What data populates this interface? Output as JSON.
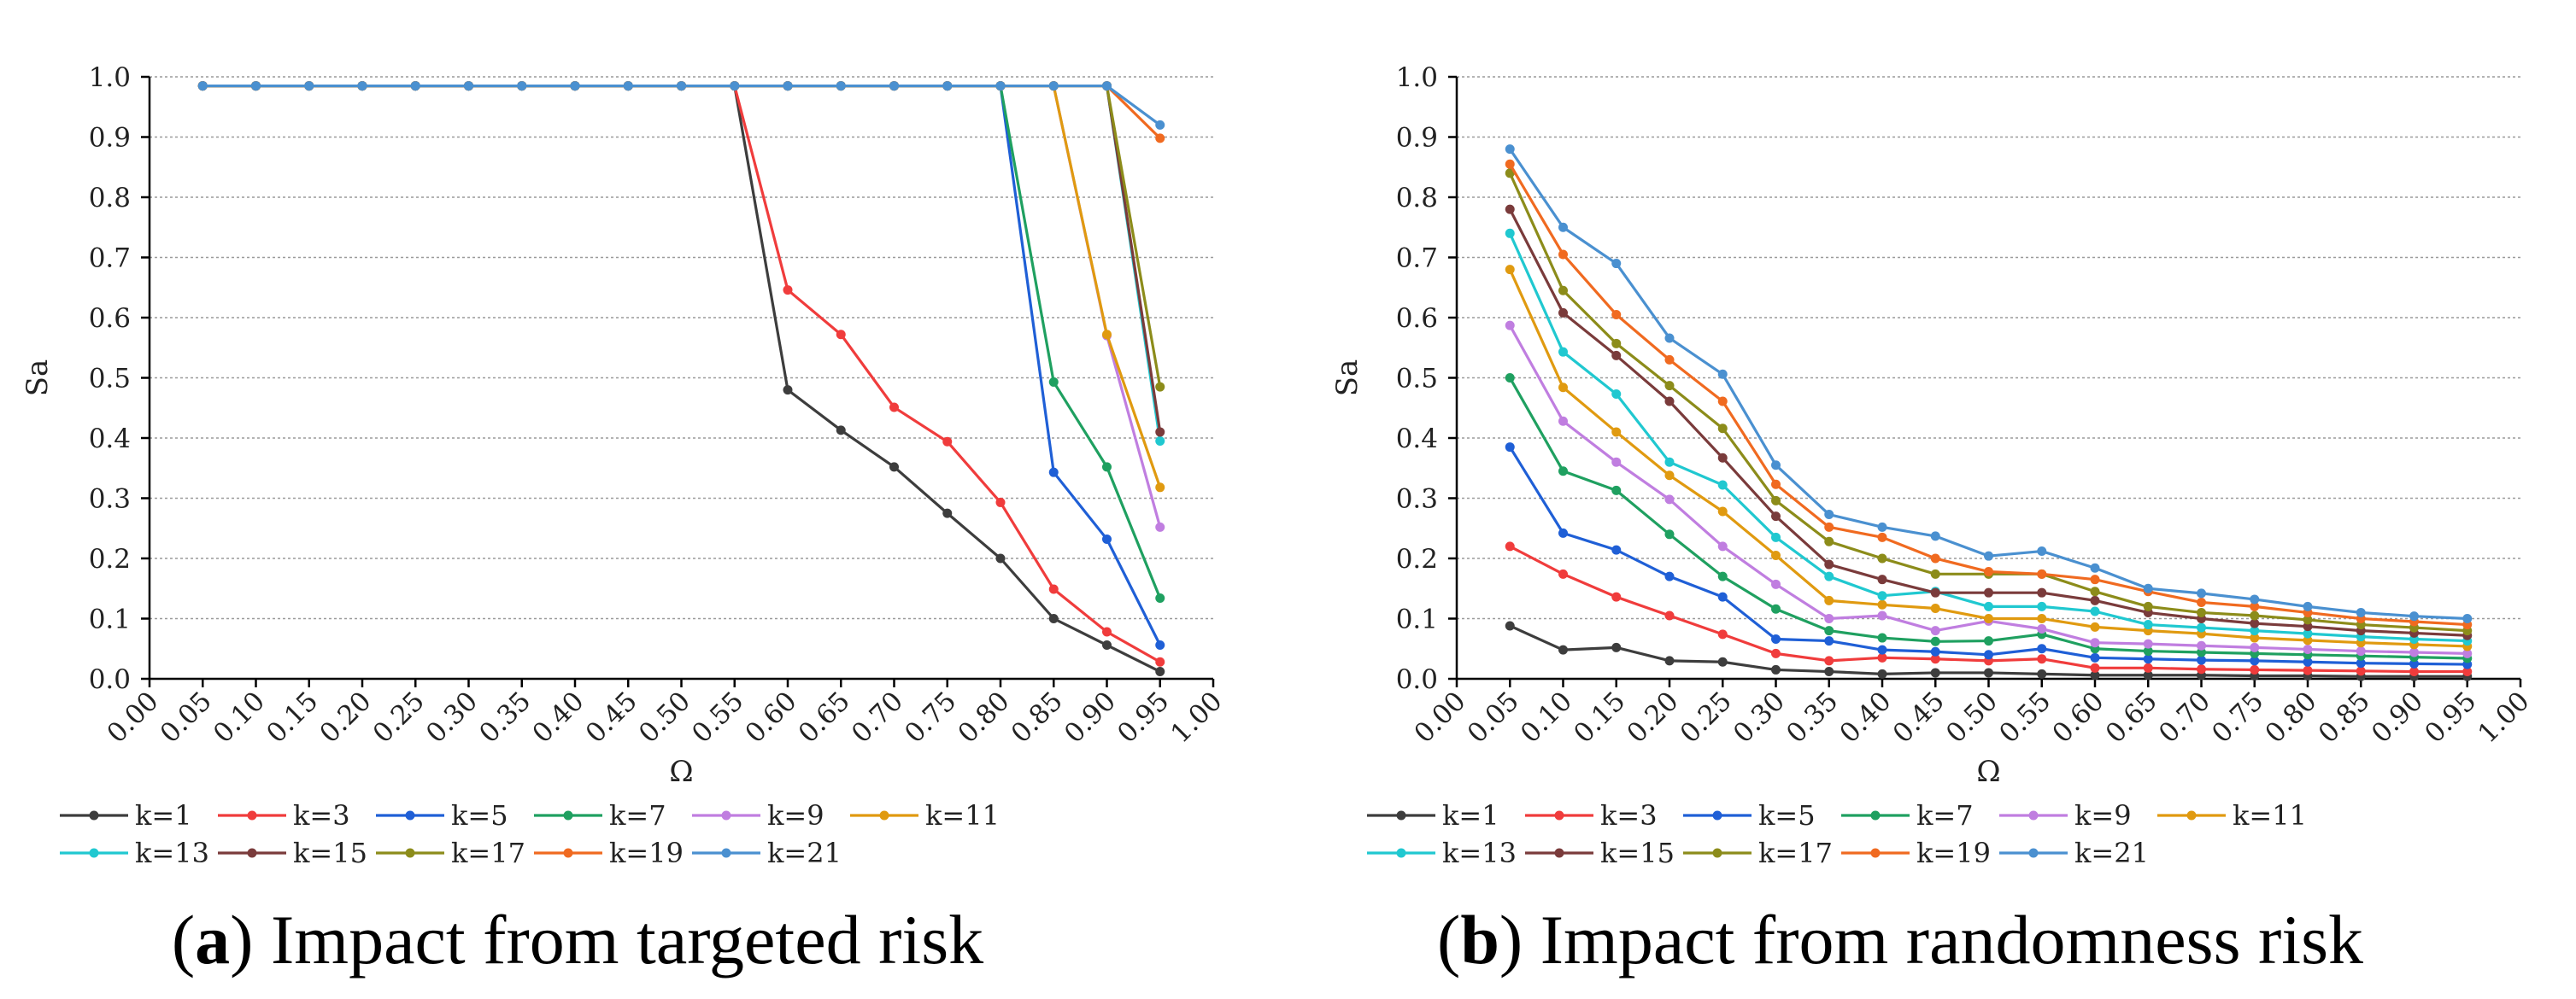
{
  "chart_data": [
    {
      "type": "line",
      "caption_letter": "a",
      "caption_text": ") Impact from targeted risk",
      "caption_open": "(",
      "xlabel": "Ω",
      "ylabel": "Sa",
      "xlim": [
        0.0,
        1.0
      ],
      "ylim": [
        0.0,
        1.0
      ],
      "grid": true,
      "legend_position": "bottom",
      "x": [
        0.05,
        0.1,
        0.15,
        0.2,
        0.25,
        0.3,
        0.35,
        0.4,
        0.45,
        0.5,
        0.55,
        0.6,
        0.65,
        0.7,
        0.75,
        0.8,
        0.85,
        0.9,
        0.95
      ],
      "xticks": [
        "0.00",
        "0.05",
        "0.10",
        "0.15",
        "0.20",
        "0.25",
        "0.30",
        "0.35",
        "0.40",
        "0.45",
        "0.50",
        "0.55",
        "0.60",
        "0.65",
        "0.70",
        "0.75",
        "0.80",
        "0.85",
        "0.90",
        "0.95",
        "1.00"
      ],
      "yticks": [
        "0.0",
        "0.1",
        "0.2",
        "0.3",
        "0.4",
        "0.5",
        "0.6",
        "0.7",
        "0.8",
        "0.9",
        "1.0"
      ],
      "series": [
        {
          "name": "k=1",
          "color": "#3d3d3d",
          "values": [
            0.985,
            0.985,
            0.985,
            0.985,
            0.985,
            0.985,
            0.985,
            0.985,
            0.985,
            0.985,
            0.985,
            0.48,
            0.413,
            0.352,
            0.275,
            0.2,
            0.1,
            0.056,
            0.012
          ]
        },
        {
          "name": "k=3",
          "color": "#f03c3c",
          "values": [
            0.985,
            0.985,
            0.985,
            0.985,
            0.985,
            0.985,
            0.985,
            0.985,
            0.985,
            0.985,
            0.985,
            0.646,
            0.572,
            0.451,
            0.394,
            0.293,
            0.149,
            0.078,
            0.028
          ]
        },
        {
          "name": "k=5",
          "color": "#1f5fd6",
          "values": [
            0.985,
            0.985,
            0.985,
            0.985,
            0.985,
            0.985,
            0.985,
            0.985,
            0.985,
            0.985,
            0.985,
            0.985,
            0.985,
            0.985,
            0.985,
            0.985,
            0.343,
            0.232,
            0.056
          ]
        },
        {
          "name": "k=7",
          "color": "#1fa060",
          "values": [
            0.985,
            0.985,
            0.985,
            0.985,
            0.985,
            0.985,
            0.985,
            0.985,
            0.985,
            0.985,
            0.985,
            0.985,
            0.985,
            0.985,
            0.985,
            0.985,
            0.493,
            0.352,
            0.134
          ]
        },
        {
          "name": "k=9",
          "color": "#c07ee0",
          "values": [
            0.985,
            0.985,
            0.985,
            0.985,
            0.985,
            0.985,
            0.985,
            0.985,
            0.985,
            0.985,
            0.985,
            0.985,
            0.985,
            0.985,
            0.985,
            0.985,
            0.985,
            0.57,
            0.252
          ]
        },
        {
          "name": "k=11",
          "color": "#e09a10",
          "values": [
            0.985,
            0.985,
            0.985,
            0.985,
            0.985,
            0.985,
            0.985,
            0.985,
            0.985,
            0.985,
            0.985,
            0.985,
            0.985,
            0.985,
            0.985,
            0.985,
            0.985,
            0.572,
            0.318
          ]
        },
        {
          "name": "k=13",
          "color": "#20c8d0",
          "values": [
            0.985,
            0.985,
            0.985,
            0.985,
            0.985,
            0.985,
            0.985,
            0.985,
            0.985,
            0.985,
            0.985,
            0.985,
            0.985,
            0.985,
            0.985,
            0.985,
            0.985,
            0.985,
            0.395
          ]
        },
        {
          "name": "k=15",
          "color": "#7a3b3b",
          "values": [
            0.985,
            0.985,
            0.985,
            0.985,
            0.985,
            0.985,
            0.985,
            0.985,
            0.985,
            0.985,
            0.985,
            0.985,
            0.985,
            0.985,
            0.985,
            0.985,
            0.985,
            0.985,
            0.41
          ]
        },
        {
          "name": "k=17",
          "color": "#8c8c1a",
          "values": [
            0.985,
            0.985,
            0.985,
            0.985,
            0.985,
            0.985,
            0.985,
            0.985,
            0.985,
            0.985,
            0.985,
            0.985,
            0.985,
            0.985,
            0.985,
            0.985,
            0.985,
            0.985,
            0.485
          ]
        },
        {
          "name": "k=19",
          "color": "#f06a20",
          "values": [
            0.985,
            0.985,
            0.985,
            0.985,
            0.985,
            0.985,
            0.985,
            0.985,
            0.985,
            0.985,
            0.985,
            0.985,
            0.985,
            0.985,
            0.985,
            0.985,
            0.985,
            0.985,
            0.898
          ]
        },
        {
          "name": "k=21",
          "color": "#4a90d0",
          "values": [
            0.985,
            0.985,
            0.985,
            0.985,
            0.985,
            0.985,
            0.985,
            0.985,
            0.985,
            0.985,
            0.985,
            0.985,
            0.985,
            0.985,
            0.985,
            0.985,
            0.985,
            0.985,
            0.92
          ]
        }
      ]
    },
    {
      "type": "line",
      "caption_letter": "b",
      "caption_text": ") Impact from randomness risk",
      "caption_open": "(",
      "xlabel": "Ω",
      "ylabel": "Sa",
      "xlim": [
        0.0,
        1.0
      ],
      "ylim": [
        0.0,
        1.0
      ],
      "grid": true,
      "legend_position": "bottom",
      "x": [
        0.05,
        0.1,
        0.15,
        0.2,
        0.25,
        0.3,
        0.35,
        0.4,
        0.45,
        0.5,
        0.55,
        0.6,
        0.65,
        0.7,
        0.75,
        0.8,
        0.85,
        0.9,
        0.95
      ],
      "xticks": [
        "0.00",
        "0.05",
        "0.10",
        "0.15",
        "0.20",
        "0.25",
        "0.30",
        "0.35",
        "0.40",
        "0.45",
        "0.50",
        "0.55",
        "0.60",
        "0.65",
        "0.70",
        "0.75",
        "0.80",
        "0.85",
        "0.90",
        "0.95",
        "1.00"
      ],
      "yticks": [
        "0.0",
        "0.1",
        "0.2",
        "0.3",
        "0.4",
        "0.5",
        "0.6",
        "0.7",
        "0.8",
        "0.9",
        "1.0"
      ],
      "series": [
        {
          "name": "k=1",
          "color": "#3d3d3d",
          "values": [
            0.088,
            0.048,
            0.052,
            0.03,
            0.028,
            0.015,
            0.012,
            0.008,
            0.01,
            0.01,
            0.008,
            0.006,
            0.006,
            0.006,
            0.005,
            0.005,
            0.004,
            0.004,
            0.004
          ]
        },
        {
          "name": "k=3",
          "color": "#f03c3c",
          "values": [
            0.22,
            0.174,
            0.136,
            0.105,
            0.074,
            0.042,
            0.03,
            0.035,
            0.033,
            0.03,
            0.033,
            0.018,
            0.018,
            0.016,
            0.015,
            0.014,
            0.013,
            0.012,
            0.012
          ]
        },
        {
          "name": "k=5",
          "color": "#1f5fd6",
          "values": [
            0.385,
            0.242,
            0.214,
            0.17,
            0.136,
            0.066,
            0.063,
            0.048,
            0.045,
            0.04,
            0.05,
            0.035,
            0.033,
            0.031,
            0.03,
            0.028,
            0.026,
            0.025,
            0.024
          ]
        },
        {
          "name": "k=7",
          "color": "#1fa060",
          "values": [
            0.5,
            0.345,
            0.313,
            0.24,
            0.17,
            0.116,
            0.08,
            0.068,
            0.062,
            0.063,
            0.074,
            0.05,
            0.046,
            0.044,
            0.042,
            0.04,
            0.038,
            0.036,
            0.034
          ]
        },
        {
          "name": "k=9",
          "color": "#c07ee0",
          "values": [
            0.587,
            0.428,
            0.36,
            0.298,
            0.22,
            0.157,
            0.1,
            0.105,
            0.08,
            0.096,
            0.083,
            0.06,
            0.058,
            0.055,
            0.052,
            0.049,
            0.046,
            0.044,
            0.042
          ]
        },
        {
          "name": "k=11",
          "color": "#e09a10",
          "values": [
            0.68,
            0.484,
            0.41,
            0.338,
            0.278,
            0.205,
            0.13,
            0.123,
            0.117,
            0.1,
            0.1,
            0.086,
            0.08,
            0.075,
            0.068,
            0.064,
            0.06,
            0.057,
            0.054
          ]
        },
        {
          "name": "k=13",
          "color": "#20c8d0",
          "values": [
            0.74,
            0.543,
            0.473,
            0.36,
            0.322,
            0.235,
            0.17,
            0.138,
            0.145,
            0.12,
            0.12,
            0.112,
            0.09,
            0.085,
            0.08,
            0.075,
            0.07,
            0.066,
            0.063
          ]
        },
        {
          "name": "k=15",
          "color": "#7a3b3b",
          "values": [
            0.78,
            0.608,
            0.537,
            0.461,
            0.367,
            0.27,
            0.19,
            0.165,
            0.143,
            0.143,
            0.143,
            0.13,
            0.11,
            0.1,
            0.092,
            0.087,
            0.08,
            0.076,
            0.072
          ]
        },
        {
          "name": "k=17",
          "color": "#8c8c1a",
          "values": [
            0.84,
            0.645,
            0.557,
            0.487,
            0.416,
            0.296,
            0.228,
            0.2,
            0.174,
            0.174,
            0.174,
            0.145,
            0.12,
            0.11,
            0.105,
            0.098,
            0.09,
            0.085,
            0.08
          ]
        },
        {
          "name": "k=19",
          "color": "#f06a20",
          "values": [
            0.855,
            0.705,
            0.605,
            0.53,
            0.461,
            0.323,
            0.252,
            0.235,
            0.2,
            0.178,
            0.174,
            0.165,
            0.145,
            0.127,
            0.12,
            0.11,
            0.1,
            0.095,
            0.09
          ]
        },
        {
          "name": "k=21",
          "color": "#4a90d0",
          "values": [
            0.88,
            0.75,
            0.69,
            0.566,
            0.506,
            0.355,
            0.273,
            0.252,
            0.237,
            0.204,
            0.212,
            0.184,
            0.15,
            0.142,
            0.132,
            0.12,
            0.11,
            0.104,
            0.1
          ]
        }
      ]
    }
  ]
}
